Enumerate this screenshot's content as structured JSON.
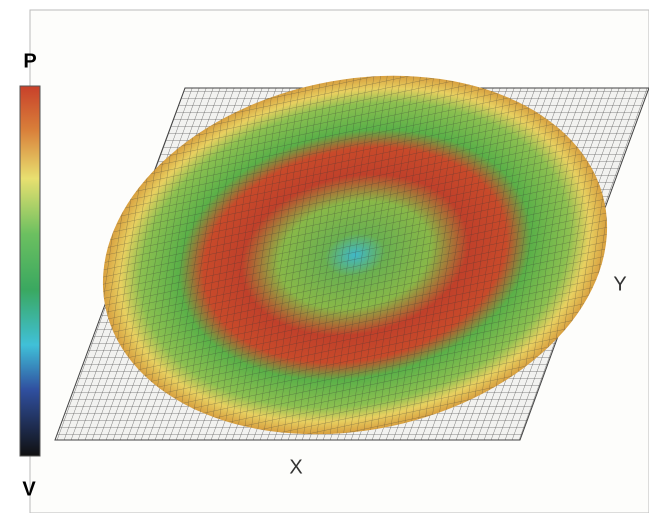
{
  "colorbar": {
    "top_label": "P",
    "bottom_label": "V"
  },
  "axes": {
    "x_label": "X",
    "y_label": "Y"
  }
}
